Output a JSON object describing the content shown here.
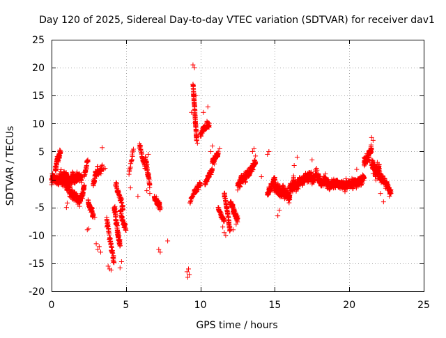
{
  "chart_data": {
    "type": "scatter",
    "title": "Day 120 of 2025, Sidereal Day-to-day VTEC variation (SDTVAR) for receiver dav1",
    "xlabel": "GPS time / hours",
    "ylabel": "SDTVAR / TECUs",
    "xlim": [
      0,
      25
    ],
    "ylim": [
      -20,
      25
    ],
    "x_ticks": [
      "0",
      "5",
      "10",
      "15",
      "20",
      "25"
    ],
    "y_ticks": [
      "-20",
      "-15",
      "-10",
      "-5",
      "0",
      "5",
      "10",
      "15",
      "20",
      "25"
    ],
    "grid": true,
    "marker": "plus",
    "color": "#ff0000",
    "segments": [
      [
        0.0,
        2.0,
        0.0,
        0.3,
        4.0,
        1.2
      ],
      [
        0.25,
        0.6,
        2.0,
        5.0,
        3.5,
        1.0
      ],
      [
        0.6,
        1.2,
        1.0,
        -2.0,
        2.5,
        1.2
      ],
      [
        1.2,
        1.9,
        -2.5,
        -3.5,
        2.5,
        1.2
      ],
      [
        1.9,
        2.2,
        -4.5,
        -1.0,
        3.0,
        1.0
      ],
      [
        2.2,
        2.45,
        0.5,
        3.5,
        2.0,
        0.8
      ],
      [
        2.45,
        2.8,
        -4.0,
        -6.0,
        2.5,
        1.2
      ],
      [
        2.8,
        3.1,
        -1.0,
        2.5,
        2.5,
        1.0
      ],
      [
        3.1,
        3.4,
        1.0,
        2.0,
        2.0,
        0.8
      ],
      [
        3.7,
        4.2,
        -7.0,
        -15.0,
        2.0,
        1.2
      ],
      [
        4.2,
        4.6,
        -5.0,
        -12.0,
        4.0,
        1.2
      ],
      [
        4.3,
        4.8,
        -1.0,
        -5.0,
        2.0,
        1.0
      ],
      [
        4.6,
        5.0,
        -6.0,
        -9.0,
        2.0,
        1.0
      ],
      [
        5.2,
        5.5,
        1.0,
        5.5,
        1.0,
        0.8
      ],
      [
        5.9,
        6.3,
        6.0,
        2.0,
        1.5,
        1.0
      ],
      [
        6.3,
        6.6,
        4.0,
        -1.0,
        3.0,
        1.0
      ],
      [
        6.9,
        7.3,
        -3.0,
        -5.5,
        3.0,
        1.0
      ],
      [
        9.3,
        9.6,
        -4.0,
        -2.0,
        1.0,
        0.6
      ],
      [
        9.5,
        9.75,
        17.0,
        7.0,
        6.0,
        0.6
      ],
      [
        9.6,
        10.0,
        -2.0,
        -1.0,
        2.0,
        0.8
      ],
      [
        10.0,
        10.6,
        8.0,
        10.0,
        2.0,
        0.8
      ],
      [
        10.3,
        10.8,
        -1.0,
        2.0,
        2.0,
        0.8
      ],
      [
        10.8,
        11.2,
        3.0,
        5.0,
        3.0,
        0.8
      ],
      [
        11.2,
        11.6,
        -5.0,
        -7.5,
        2.0,
        0.8
      ],
      [
        11.6,
        12.0,
        -3.0,
        -9.0,
        3.0,
        1.0
      ],
      [
        12.0,
        12.5,
        -4.0,
        -7.0,
        3.0,
        1.0
      ],
      [
        12.5,
        13.2,
        -1.0,
        1.0,
        3.0,
        1.0
      ],
      [
        13.2,
        13.7,
        1.0,
        3.0,
        3.0,
        1.0
      ],
      [
        14.5,
        15.0,
        -2.5,
        0.0,
        3.0,
        0.8
      ],
      [
        15.0,
        16.0,
        -1.5,
        -3.0,
        5.0,
        1.2
      ],
      [
        16.0,
        17.0,
        -1.5,
        0.0,
        4.0,
        1.2
      ],
      [
        17.0,
        18.0,
        0.5,
        0.5,
        3.0,
        1.2
      ],
      [
        18.0,
        19.5,
        -0.5,
        -1.0,
        3.0,
        1.2
      ],
      [
        19.5,
        20.5,
        -1.0,
        -0.5,
        3.5,
        1.2
      ],
      [
        20.5,
        21.0,
        -1.0,
        0.5,
        3.0,
        1.0
      ],
      [
        21.0,
        21.5,
        3.0,
        5.0,
        4.0,
        1.2
      ],
      [
        21.5,
        22.3,
        3.0,
        0.0,
        3.5,
        1.4
      ],
      [
        22.3,
        22.8,
        -0.5,
        -2.0,
        3.0,
        1.0
      ]
    ],
    "points": [
      [
        1.0,
        -5.0
      ],
      [
        1.05,
        -4.2
      ],
      [
        2.4,
        -9.0
      ],
      [
        2.5,
        -8.8
      ],
      [
        2.8,
        -6.5
      ],
      [
        2.9,
        -6.8
      ],
      [
        3.0,
        -11.5
      ],
      [
        3.1,
        -12.5
      ],
      [
        3.2,
        -12.0
      ],
      [
        3.3,
        -13.0
      ],
      [
        3.4,
        5.7
      ],
      [
        3.5,
        1.8
      ],
      [
        3.6,
        2.0
      ],
      [
        3.7,
        -8.5
      ],
      [
        3.8,
        -15.5
      ],
      [
        3.9,
        -16.0
      ],
      [
        4.0,
        -16.2
      ],
      [
        4.6,
        -15.8
      ],
      [
        4.7,
        -14.7
      ],
      [
        5.3,
        -1.5
      ],
      [
        5.8,
        -3.0
      ],
      [
        6.4,
        -2.0
      ],
      [
        6.5,
        4.5
      ],
      [
        6.6,
        -2.5
      ],
      [
        7.2,
        -12.5
      ],
      [
        7.3,
        -13.0
      ],
      [
        7.8,
        -11.0
      ],
      [
        9.1,
        -16.5
      ],
      [
        9.15,
        -17.5
      ],
      [
        9.2,
        -16.0
      ],
      [
        9.25,
        -17.0
      ],
      [
        9.4,
        12.0
      ],
      [
        9.5,
        20.5
      ],
      [
        9.6,
        20.0
      ],
      [
        9.7,
        15.0
      ],
      [
        9.8,
        6.5
      ],
      [
        10.2,
        12.0
      ],
      [
        10.5,
        13.0
      ],
      [
        10.7,
        5.0
      ],
      [
        10.8,
        6.0
      ],
      [
        11.1,
        4.0
      ],
      [
        11.3,
        5.5
      ],
      [
        11.5,
        -8.5
      ],
      [
        11.6,
        -9.5
      ],
      [
        11.7,
        -10.0
      ],
      [
        12.2,
        -9.0
      ],
      [
        12.4,
        -8.0
      ],
      [
        13.5,
        5.0
      ],
      [
        13.6,
        5.5
      ],
      [
        13.7,
        4.2
      ],
      [
        14.1,
        0.5
      ],
      [
        14.5,
        4.5
      ],
      [
        14.6,
        5.0
      ],
      [
        15.2,
        -6.5
      ],
      [
        15.3,
        -5.5
      ],
      [
        16.3,
        2.5
      ],
      [
        16.5,
        4.0
      ],
      [
        17.5,
        3.5
      ],
      [
        17.8,
        2.0
      ],
      [
        18.4,
        1.0
      ],
      [
        20.5,
        1.8
      ],
      [
        21.0,
        4.0
      ],
      [
        21.5,
        7.5
      ],
      [
        21.6,
        7.0
      ],
      [
        22.1,
        -2.5
      ],
      [
        22.3,
        -4.0
      ],
      [
        22.7,
        -3.0
      ],
      [
        22.8,
        -2.5
      ]
    ]
  }
}
